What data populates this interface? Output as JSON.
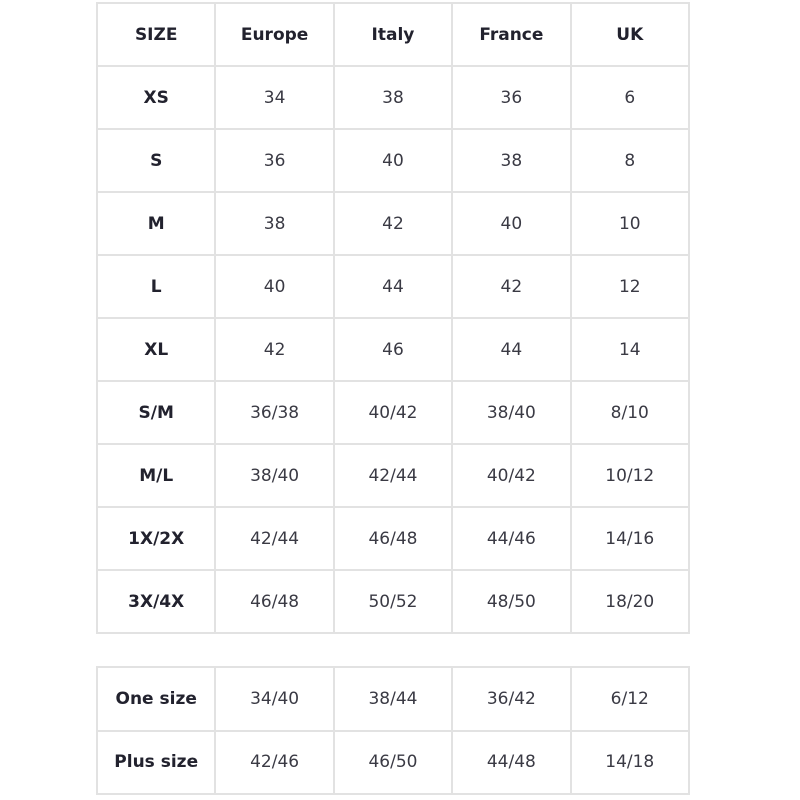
{
  "size_table": {
    "headers": [
      "SIZE",
      "Europe",
      "Italy",
      "France",
      "UK"
    ],
    "rows": [
      [
        "XS",
        "34",
        "38",
        "36",
        "6"
      ],
      [
        "S",
        "36",
        "40",
        "38",
        "8"
      ],
      [
        "M",
        "38",
        "42",
        "40",
        "10"
      ],
      [
        "L",
        "40",
        "44",
        "42",
        "12"
      ],
      [
        "XL",
        "42",
        "46",
        "44",
        "14"
      ],
      [
        "S/M",
        "36/38",
        "40/42",
        "38/40",
        "8/10"
      ],
      [
        "M/L",
        "38/40",
        "42/44",
        "40/42",
        "10/12"
      ],
      [
        "1X/2X",
        "42/44",
        "46/48",
        "44/46",
        "14/16"
      ],
      [
        "3X/4X",
        "46/48",
        "50/52",
        "48/50",
        "18/20"
      ]
    ]
  },
  "extra_table": {
    "rows": [
      [
        "One size",
        "34/40",
        "38/44",
        "36/42",
        "6/12"
      ],
      [
        "Plus size",
        "42/46",
        "46/50",
        "44/48",
        "14/18"
      ]
    ]
  }
}
